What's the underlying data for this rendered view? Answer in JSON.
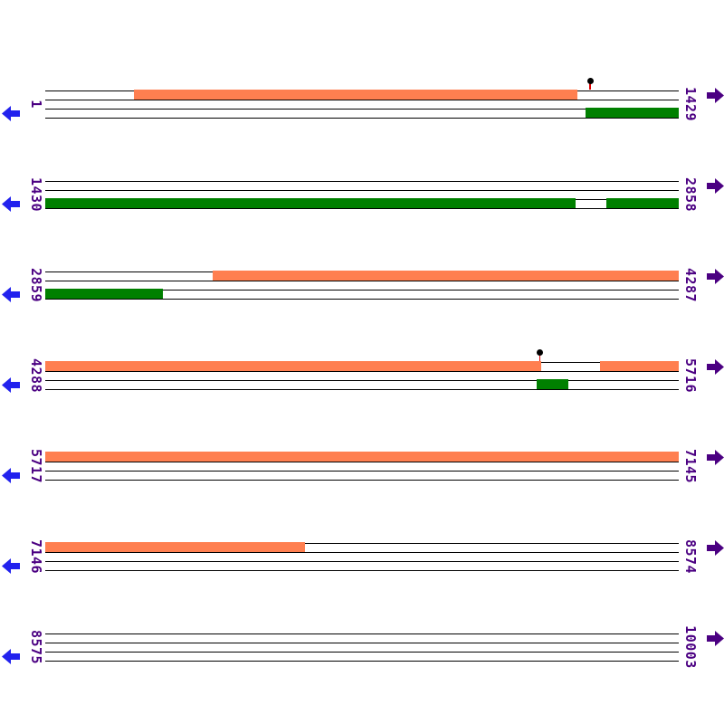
{
  "palette": {
    "forward_feature": "#FF7F50",
    "reverse_feature": "#008000",
    "left_arrow": "#2222EE",
    "right_arrow": "#4B0082",
    "label_color": "#4B0082",
    "pin_head": "#000000",
    "pin_stem": "#DD0000",
    "line_color": "#000000",
    "background": "#FFFFFF"
  },
  "map": {
    "rows": [
      {
        "start_label": "1",
        "end_label": "1429",
        "features": [
          {
            "strand": "forward",
            "color_key": "forward_feature",
            "x1": 0.14,
            "x2": 0.84
          },
          {
            "strand": "reverse",
            "color_key": "reverse_feature",
            "x1": 0.853,
            "x2": 1.0
          }
        ],
        "pins": [
          {
            "x": 0.86
          }
        ]
      },
      {
        "start_label": "1430",
        "end_label": "2858",
        "features": [
          {
            "strand": "reverse",
            "color_key": "reverse_feature",
            "x1": 0.0,
            "x2": 0.837
          },
          {
            "strand": "reverse",
            "color_key": "reverse_feature",
            "x1": 0.886,
            "x2": 1.0
          }
        ],
        "pins": []
      },
      {
        "start_label": "2859",
        "end_label": "4287",
        "features": [
          {
            "strand": "forward",
            "color_key": "forward_feature",
            "x1": 0.264,
            "x2": 1.0
          },
          {
            "strand": "reverse",
            "color_key": "reverse_feature",
            "x1": 0.0,
            "x2": 0.186
          }
        ],
        "pins": []
      },
      {
        "start_label": "4288",
        "end_label": "5716",
        "features": [
          {
            "strand": "forward",
            "color_key": "forward_feature",
            "x1": 0.0,
            "x2": 0.783
          },
          {
            "strand": "forward",
            "color_key": "forward_feature",
            "x1": 0.876,
            "x2": 1.0
          },
          {
            "strand": "reverse",
            "color_key": "reverse_feature",
            "x1": 0.776,
            "x2": 0.826
          }
        ],
        "pins": [
          {
            "x": 0.781
          }
        ]
      },
      {
        "start_label": "5717",
        "end_label": "7145",
        "features": [
          {
            "strand": "forward",
            "color_key": "forward_feature",
            "x1": 0.0,
            "x2": 1.0
          }
        ],
        "pins": []
      },
      {
        "start_label": "7146",
        "end_label": "8574",
        "features": [
          {
            "strand": "forward",
            "color_key": "forward_feature",
            "x1": 0.0,
            "x2": 0.41
          }
        ],
        "pins": []
      },
      {
        "start_label": "8575",
        "end_label": "10003",
        "features": [],
        "pins": []
      }
    ]
  }
}
